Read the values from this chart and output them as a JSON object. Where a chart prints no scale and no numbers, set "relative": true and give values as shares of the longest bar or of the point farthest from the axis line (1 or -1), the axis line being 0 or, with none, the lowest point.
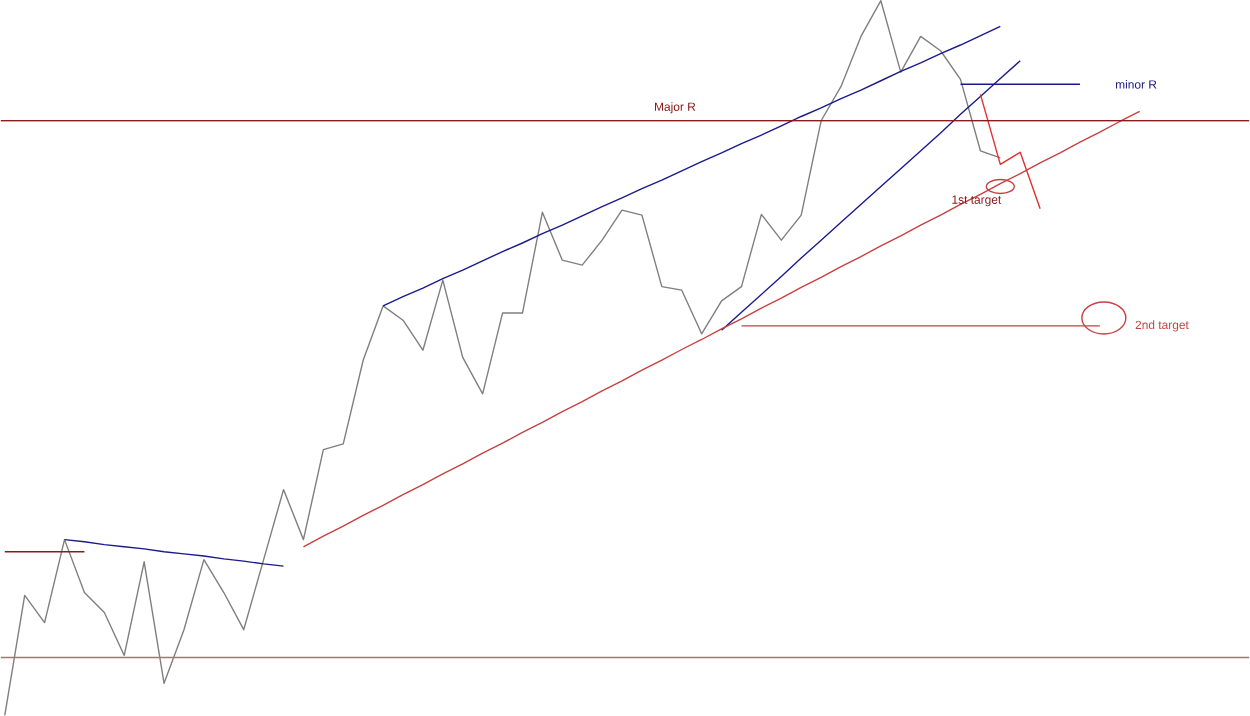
{
  "chart_data": {
    "type": "line",
    "relative": true,
    "marker": "none",
    "line_style": "solid",
    "categories": [
      null,
      null,
      null,
      null,
      null,
      null,
      null,
      null,
      null,
      null,
      null,
      null,
      null,
      null,
      null,
      null,
      null,
      null,
      null,
      null,
      null,
      null,
      null,
      null,
      null,
      null,
      null,
      null,
      null,
      null,
      null,
      null,
      null,
      null,
      null,
      null,
      null,
      null,
      null,
      null,
      null,
      null,
      null,
      null,
      null,
      null,
      null,
      null,
      null,
      null,
      null,
      null,
      null,
      null,
      null,
      null,
      null,
      null,
      null,
      null,
      null,
      null,
      null
    ],
    "series": [
      {
        "color": "#7f7f7f",
        "values": [
          0,
          0.168,
          0.13,
          0.246,
          0.172,
          0.144,
          0.084,
          0.215,
          0.045,
          0.12,
          0.218,
          0.172,
          0.12,
          0.218,
          0.316,
          0.246,
          0.372,
          0.38,
          0.497,
          0.573,
          0.553,
          0.511,
          0.609,
          0.501,
          0.45,
          0.563,
          0.563,
          0.704,
          0.637,
          0.63,
          0.665,
          0.707,
          0.7,
          0.6,
          0.595,
          0.534,
          0.58,
          0.6,
          0.701,
          0.665,
          0.7,
          0.832,
          0.88,
          0.95,
          1,
          0.9,
          0.95,
          0.93,
          0.89,
          0.79,
          0.78,
          null,
          null,
          null,
          null,
          null,
          null,
          null,
          null,
          null,
          null,
          null,
          null
        ]
      },
      {
        "color": "#1a1a8c",
        "values": [
          null,
          null,
          null,
          null,
          null,
          null,
          null,
          null,
          null,
          null,
          null,
          null,
          null,
          null,
          null,
          null,
          null,
          null,
          null,
          0.573,
          0.586,
          0.598,
          0.611,
          0.623,
          0.636,
          0.649,
          0.661,
          0.674,
          0.686,
          0.699,
          0.712,
          0.724,
          0.737,
          0.749,
          0.762,
          0.775,
          0.787,
          0.8,
          0.812,
          0.825,
          0.838,
          0.85,
          0.863,
          0.875,
          0.888,
          0.901,
          0.913,
          0.926,
          0.938,
          0.951,
          0.964,
          null,
          null,
          null,
          null,
          null,
          null,
          null,
          null,
          null,
          null,
          null,
          null
        ]
      },
      {
        "color": "#1a1a8c",
        "values": [
          null,
          null,
          null,
          0.246,
          0.243,
          0.239,
          0.236,
          0.233,
          0.229,
          0.226,
          0.223,
          0.219,
          0.216,
          0.212,
          0.209,
          null,
          null,
          null,
          null,
          null,
          null,
          null,
          null,
          null,
          null,
          null,
          null,
          null,
          null,
          null,
          null,
          null,
          null,
          null,
          null,
          null,
          null,
          null,
          null,
          null,
          null,
          null,
          null,
          null,
          null,
          null,
          null,
          null,
          null,
          null,
          null,
          null,
          null,
          null,
          null,
          null,
          null,
          null,
          null,
          null,
          null,
          null,
          null
        ]
      },
      {
        "color": "#1a1a8c",
        "values": [
          null,
          null,
          null,
          null,
          null,
          null,
          null,
          null,
          null,
          null,
          null,
          null,
          null,
          null,
          null,
          null,
          null,
          null,
          null,
          null,
          null,
          null,
          null,
          null,
          null,
          null,
          null,
          null,
          null,
          null,
          null,
          null,
          null,
          null,
          null,
          null,
          0.539,
          0.564,
          0.589,
          0.614,
          0.64,
          0.665,
          0.69,
          0.715,
          0.74,
          0.765,
          0.79,
          0.815,
          0.841,
          0.866,
          0.891,
          0.916,
          null,
          null,
          null,
          null,
          null,
          null,
          null,
          null,
          null,
          null,
          null
        ]
      },
      {
        "color": "#1a1a8c",
        "name": "minor R",
        "values": [
          null,
          null,
          null,
          null,
          null,
          null,
          null,
          null,
          null,
          null,
          null,
          null,
          null,
          null,
          null,
          null,
          null,
          null,
          null,
          null,
          null,
          null,
          null,
          null,
          null,
          null,
          null,
          null,
          null,
          null,
          null,
          null,
          null,
          null,
          null,
          null,
          null,
          null,
          null,
          null,
          null,
          null,
          null,
          null,
          null,
          null,
          null,
          null,
          0.883,
          0.883,
          0.883,
          0.883,
          0.883,
          0.883,
          0.883,
          null,
          null,
          null,
          null,
          null,
          null,
          null,
          null
        ]
      },
      {
        "color": "#c84040",
        "values": [
          null,
          null,
          null,
          null,
          null,
          null,
          null,
          null,
          null,
          null,
          null,
          null,
          null,
          null,
          null,
          0.236,
          0.251,
          0.265,
          0.28,
          0.294,
          0.309,
          0.323,
          0.338,
          0.352,
          0.367,
          0.381,
          0.396,
          0.41,
          0.425,
          0.439,
          0.454,
          0.468,
          0.483,
          0.497,
          0.512,
          0.526,
          0.541,
          0.555,
          0.57,
          0.584,
          0.599,
          0.613,
          0.628,
          0.642,
          0.657,
          0.671,
          0.686,
          0.7,
          0.715,
          0.729,
          0.744,
          0.758,
          0.773,
          0.787,
          0.802,
          0.816,
          0.831,
          0.845,
          null,
          null,
          null,
          null,
          null
        ]
      },
      {
        "color": "#c84040",
        "name": "2nd target",
        "values": [
          null,
          null,
          null,
          null,
          null,
          null,
          null,
          null,
          null,
          null,
          null,
          null,
          null,
          null,
          null,
          null,
          null,
          null,
          null,
          null,
          null,
          null,
          null,
          null,
          null,
          null,
          null,
          null,
          null,
          null,
          null,
          null,
          null,
          null,
          null,
          null,
          null,
          0.545,
          0.545,
          0.545,
          0.545,
          0.545,
          0.545,
          0.545,
          0.545,
          0.545,
          0.545,
          0.545,
          0.545,
          0.545,
          0.545,
          0.545,
          0.545,
          0.545,
          0.545,
          0.545,
          null,
          null,
          null,
          null,
          null,
          null,
          null
        ]
      },
      {
        "color": "#e03030",
        "values": [
          null,
          null,
          null,
          null,
          null,
          null,
          null,
          null,
          null,
          null,
          null,
          null,
          null,
          null,
          null,
          null,
          null,
          null,
          null,
          null,
          null,
          null,
          null,
          null,
          null,
          null,
          null,
          null,
          null,
          null,
          null,
          null,
          null,
          null,
          null,
          null,
          null,
          null,
          null,
          null,
          null,
          null,
          null,
          null,
          null,
          null,
          null,
          null,
          null,
          0.869,
          0.771,
          0.788,
          0.709,
          null,
          null,
          null,
          null,
          null,
          null,
          null,
          null,
          null,
          null
        ]
      },
      {
        "color": "#8b1a1a",
        "values": [
          0.229,
          0.229,
          0.229,
          0.229,
          0.229,
          null,
          null,
          null,
          null,
          null,
          null,
          null,
          null,
          null,
          null,
          null,
          null,
          null,
          null,
          null,
          null,
          null,
          null,
          null,
          null,
          null,
          null,
          null,
          null,
          null,
          null,
          null,
          null,
          null,
          null,
          null,
          null,
          null,
          null,
          null,
          null,
          null,
          null,
          null,
          null,
          null,
          null,
          null,
          null,
          null,
          null,
          null,
          null,
          null,
          null,
          null,
          null,
          null,
          null,
          null,
          null,
          null,
          null
        ]
      }
    ],
    "ref_lines": [
      {
        "axis": "y",
        "value": 0.832,
        "label": "Major R",
        "color": "#8b1a1a"
      },
      {
        "axis": "y",
        "value": 0.081,
        "color": "#b07070"
      }
    ],
    "annotations": [
      {
        "text": "1st target",
        "y": 0.74
      }
    ]
  }
}
